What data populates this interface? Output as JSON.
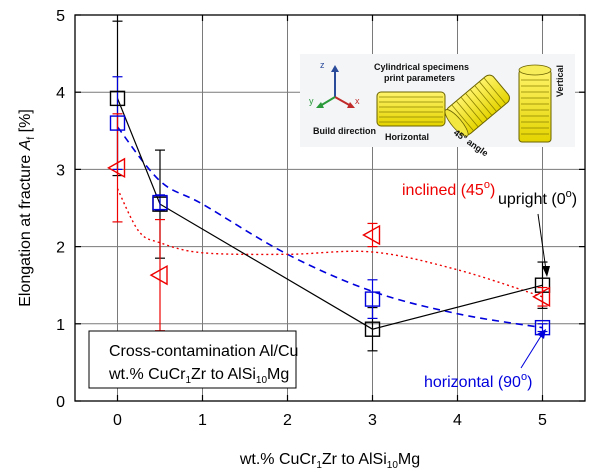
{
  "chart_data": {
    "type": "scatter",
    "xlabel": {
      "main": "wt.% CuCr",
      "sub1": "1",
      "mid": "Zr to AlSi",
      "sub2": "10",
      "end": "Mg"
    },
    "ylabel": {
      "main": "Elongation at fracture ",
      "var": "A",
      "sub": "f",
      "end": " [%]"
    },
    "xlim": [
      -0.5,
      5.5
    ],
    "ylim": [
      0,
      5
    ],
    "xticks": [
      0,
      1,
      2,
      3,
      4,
      5
    ],
    "yticks": [
      0,
      1,
      2,
      3,
      4,
      5
    ],
    "grid": true,
    "series": [
      {
        "name": "upright (0°)",
        "marker": "square",
        "color": "#000000",
        "line": "solid",
        "points": [
          {
            "x": 0,
            "y": 3.92,
            "err": 1.0
          },
          {
            "x": 0.5,
            "y": 2.55,
            "err": 0.7
          },
          {
            "x": 3,
            "y": 0.93,
            "err": 0.28
          },
          {
            "x": 5,
            "y": 1.5,
            "err": 0.3
          }
        ]
      },
      {
        "name": "horizontal (90°)",
        "marker": "square",
        "color": "#0000dd",
        "line": "dashed",
        "points": [
          {
            "x": 0,
            "y": 3.6,
            "err": 0.6
          },
          {
            "x": 0.5,
            "y": 2.57,
            "err": 0.1
          },
          {
            "x": 3,
            "y": 1.32,
            "err": 0.25
          },
          {
            "x": 5,
            "y": 0.95,
            "err": 0.05
          }
        ]
      },
      {
        "name": "inclined (45°)",
        "marker": "triangle-left",
        "color": "#ee0000",
        "line": "dotted",
        "points": [
          {
            "x": 0,
            "y": 3.02,
            "err": 0.7
          },
          {
            "x": 0.5,
            "y": 1.63,
            "err": 0.72
          },
          {
            "x": 3,
            "y": 2.15,
            "err": 0.15
          },
          {
            "x": 5,
            "y": 1.35,
            "err": 0.12
          }
        ]
      }
    ],
    "fit_curves": {
      "horizontal": [
        [
          0,
          3.55
        ],
        [
          0.5,
          2.85
        ],
        [
          1,
          2.55
        ],
        [
          2,
          1.9
        ],
        [
          3,
          1.42
        ],
        [
          4,
          1.13
        ],
        [
          5,
          0.95
        ]
      ],
      "inclined": [
        [
          0,
          2.75
        ],
        [
          0.25,
          2.2
        ],
        [
          0.5,
          2.05
        ],
        [
          1,
          1.92
        ],
        [
          2,
          1.9
        ],
        [
          3,
          1.93
        ],
        [
          4,
          1.7
        ],
        [
          5,
          1.35
        ]
      ]
    },
    "annotations": {
      "upright_label": "upright (0",
      "horizontal_label": "horizontal (90",
      "inclined_label": "inclined (45",
      "degree": "o",
      "close_paren": ")"
    },
    "textbox": {
      "line1": "Cross-contamination Al/Cu",
      "line2_main": "wt.% CuCr",
      "line2_sub1": "1",
      "line2_mid": "Zr to AlSi",
      "line2_sub2": "10",
      "line2_end": "Mg"
    },
    "inset": {
      "title_line1": "Cylindrical specimens",
      "title_line2": "print parameters",
      "build_direction": "Build direction",
      "horizontal": "Horizontal",
      "angle": "45° angle",
      "vertical": "Vertical",
      "axis_z": "z",
      "axis_x": "x",
      "axis_y": "y"
    }
  }
}
